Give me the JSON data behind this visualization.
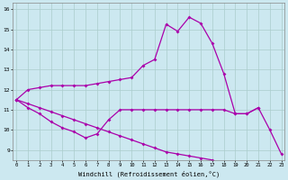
{
  "xlabel": "Windchill (Refroidissement éolien,°C)",
  "background_color": "#cce8f0",
  "line_color": "#aa00aa",
  "grid_color": "#aacccc",
  "x_ticks": [
    0,
    1,
    2,
    3,
    4,
    5,
    6,
    7,
    8,
    9,
    10,
    11,
    12,
    13,
    14,
    15,
    16,
    17,
    18,
    19,
    20,
    21,
    22,
    23
  ],
  "y_ticks": [
    9,
    10,
    11,
    12,
    13,
    14,
    15,
    16
  ],
  "ylim": [
    8.5,
    16.3
  ],
  "xlim": [
    -0.3,
    23.3
  ],
  "series2": [
    11.5,
    12.0,
    12.1,
    12.2,
    12.2,
    12.2,
    12.2,
    12.3,
    12.4,
    12.5,
    12.6,
    13.2,
    13.5,
    15.25,
    14.9,
    15.6,
    15.3,
    14.3,
    12.8,
    10.8,
    10.8,
    11.1,
    10.0,
    8.8
  ],
  "series1": [
    11.5,
    11.1,
    10.8,
    10.4,
    10.1,
    9.9,
    9.6,
    9.8,
    10.5,
    11.0,
    11.0,
    11.0,
    11.0,
    11.0,
    11.0,
    11.0,
    11.0,
    11.0,
    11.0,
    10.8,
    10.8,
    11.1,
    null,
    null
  ],
  "series3": [
    11.5,
    11.3,
    11.1,
    10.9,
    10.7,
    10.5,
    10.3,
    10.1,
    9.9,
    9.7,
    9.5,
    9.3,
    9.1,
    8.9,
    8.8,
    8.7,
    8.6,
    8.5,
    null,
    null,
    null,
    null,
    null,
    null
  ]
}
